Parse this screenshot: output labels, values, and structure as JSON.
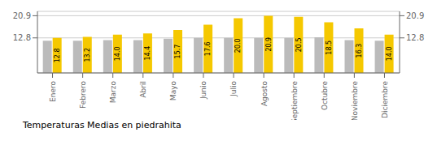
{
  "chart_data": {
    "type": "bar",
    "title": "Temperaturas Medias en piedrahita",
    "categories": [
      "Enero",
      "Febrero",
      "Marzo",
      "Abril",
      "Mayo",
      "Junio",
      "Julio",
      "Agosto",
      "Septiembre",
      "Octubre",
      "Noviembre",
      "Diciembre"
    ],
    "series": [
      {
        "color": "#BBBBBB",
        "values": [
          11.8,
          11.8,
          12.0,
          12.0,
          12.5,
          12.8,
          12.8,
          12.8,
          12.8,
          13.0,
          12.0,
          11.8
        ]
      },
      {
        "color": "#F5C800",
        "values": [
          12.8,
          13.2,
          14.0,
          14.4,
          15.7,
          17.6,
          20.0,
          20.9,
          20.5,
          18.5,
          16.3,
          14.0
        ],
        "data_labels": true,
        "value_labels": [
          "12.8",
          "13.2",
          "14.0",
          "14.4",
          "15.7",
          "17.6",
          "20.0",
          "20.9",
          "20.5",
          "18.5",
          "16.3",
          "14.0"
        ]
      }
    ],
    "ylim": [
      0,
      22.5
    ],
    "yticks": [
      12.8,
      20.9
    ],
    "y2lim": [
      0,
      22.5
    ],
    "y2ticks": [
      12.8,
      20.9
    ],
    "grid": true
  }
}
